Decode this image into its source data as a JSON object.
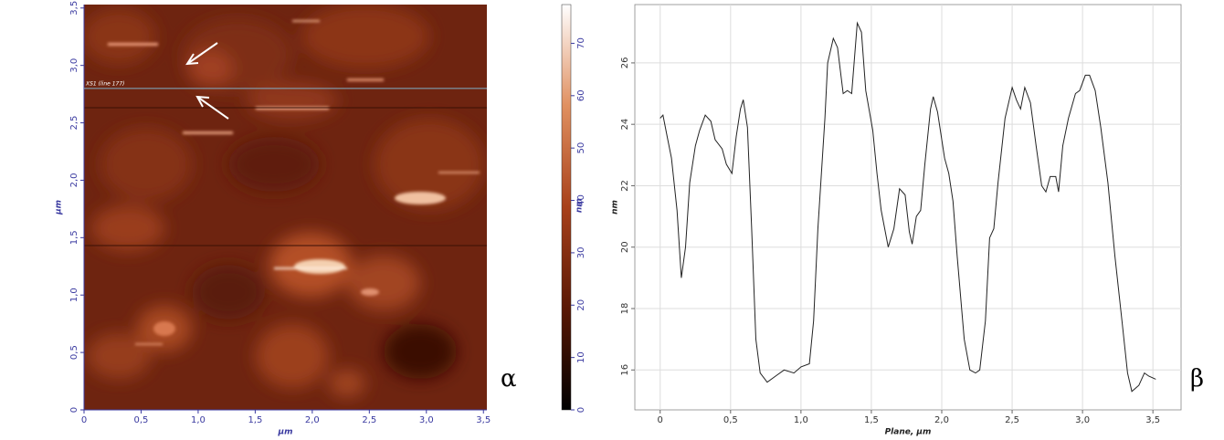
{
  "chart_data": [
    {
      "type": "image",
      "xlabel": "µm",
      "ylabel": "µm",
      "xlim": [
        0,
        3.53
      ],
      "ylim": [
        0,
        3.53
      ],
      "xticks": [
        0,
        {
          "value": 0.5,
          "label": "0,5"
        },
        {
          "value": 1,
          "label": "1,0"
        },
        {
          "value": 1.5,
          "label": "1,5"
        },
        {
          "value": 2,
          "label": "2,0"
        },
        {
          "value": 2.5,
          "label": "2,5"
        },
        {
          "value": 3,
          "label": "3,0"
        },
        {
          "value": 3.5,
          "label": "3,5"
        }
      ],
      "yticks": [
        0,
        {
          "value": 0.5,
          "label": "0,5"
        },
        {
          "value": 1,
          "label": "1,0"
        },
        {
          "value": 1.5,
          "label": "1,5"
        },
        {
          "value": 2,
          "label": "2,0"
        },
        {
          "value": 2.5,
          "label": "2,5"
        },
        {
          "value": 3,
          "label": "3,0"
        },
        {
          "value": 3.5,
          "label": "3,5"
        }
      ],
      "annotation": "XS1 (line 177)",
      "annotation_y": 2.8,
      "colorbar": {
        "label": "nm",
        "lim": [
          0,
          77.4
        ],
        "ticks": [
          0,
          10,
          20,
          30,
          40,
          50,
          60,
          70
        ]
      },
      "panel_label": "α"
    },
    {
      "type": "line",
      "xlabel": "Plane, µm",
      "ylabel": "nm",
      "color": "#222222",
      "grid": true,
      "xlim": [
        -0.18,
        3.7
      ],
      "ylim": [
        14.7,
        27.9
      ],
      "xticks": [
        0,
        {
          "value": 0.5,
          "label": "0,5"
        },
        {
          "value": 1,
          "label": "1,0"
        },
        {
          "value": 1.5,
          "label": "1,5"
        },
        {
          "value": 2,
          "label": "2,0"
        },
        {
          "value": 2.5,
          "label": "2,5"
        },
        {
          "value": 3,
          "label": "3,0"
        },
        {
          "value": 3.5,
          "label": "3,5"
        }
      ],
      "yticks": [
        16,
        18,
        20,
        22,
        24,
        26
      ],
      "x": [
        0,
        0.02,
        0.05,
        0.08,
        0.12,
        0.15,
        0.18,
        0.21,
        0.25,
        0.28,
        0.32,
        0.36,
        0.39,
        0.44,
        0.47,
        0.51,
        0.54,
        0.57,
        0.59,
        0.62,
        0.65,
        0.68,
        0.71,
        0.76,
        0.82,
        0.88,
        0.95,
        1.0,
        1.06,
        1.09,
        1.12,
        1.17,
        1.19,
        1.23,
        1.26,
        1.3,
        1.33,
        1.36,
        1.4,
        1.43,
        1.46,
        1.51,
        1.54,
        1.57,
        1.62,
        1.66,
        1.7,
        1.74,
        1.77,
        1.79,
        1.82,
        1.85,
        1.88,
        1.92,
        1.94,
        1.97,
        2.02,
        2.05,
        2.08,
        2.11,
        2.16,
        2.2,
        2.24,
        2.27,
        2.31,
        2.34,
        2.37,
        2.4,
        2.45,
        2.5,
        2.53,
        2.56,
        2.59,
        2.63,
        2.67,
        2.71,
        2.74,
        2.77,
        2.81,
        2.83,
        2.86,
        2.9,
        2.95,
        2.98,
        3.02,
        3.05,
        3.09,
        3.13,
        3.18,
        3.23,
        3.28,
        3.32,
        3.35,
        3.4,
        3.44,
        3.47,
        3.52
      ],
      "values": [
        24.2,
        24.3,
        23.6,
        22.9,
        21.2,
        19.0,
        20.0,
        22.1,
        23.3,
        23.8,
        24.3,
        24.1,
        23.5,
        23.2,
        22.7,
        22.4,
        23.6,
        24.5,
        24.8,
        23.9,
        20.6,
        17.0,
        15.9,
        15.6,
        15.8,
        16.0,
        15.9,
        16.1,
        16.2,
        17.6,
        20.6,
        24.2,
        26.0,
        26.8,
        26.5,
        25.0,
        25.1,
        25.0,
        27.3,
        27.0,
        25.1,
        23.8,
        22.4,
        21.2,
        20.0,
        20.6,
        21.9,
        21.7,
        20.5,
        20.1,
        21.0,
        21.2,
        22.7,
        24.5,
        24.9,
        24.4,
        22.9,
        22.4,
        21.5,
        19.7,
        17.0,
        16.0,
        15.9,
        16.0,
        17.6,
        20.3,
        20.6,
        22.1,
        24.2,
        25.2,
        24.8,
        24.5,
        25.2,
        24.7,
        23.3,
        22.0,
        21.8,
        22.3,
        22.3,
        21.8,
        23.3,
        24.2,
        25.0,
        25.1,
        25.6,
        25.6,
        25.1,
        23.9,
        22.1,
        19.7,
        17.6,
        15.9,
        15.3,
        15.5,
        15.9,
        15.8,
        15.7
      ],
      "panel_label": "β"
    }
  ]
}
